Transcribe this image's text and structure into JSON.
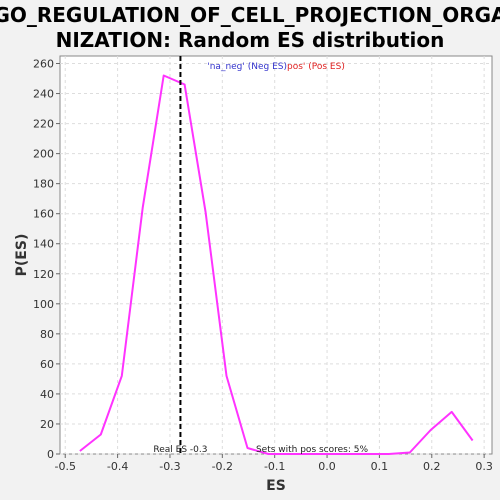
{
  "chart_data": {
    "type": "line",
    "title_lines": [
      "GO_REGULATION_OF_CELL_PROJECTION_ORGA",
      "NIZATION: Random ES distribution"
    ],
    "xlabel": "ES",
    "ylabel": "P(ES)",
    "xlim": [
      -0.51,
      0.315
    ],
    "ylim": [
      0,
      265
    ],
    "x_ticks": [
      -0.5,
      -0.4,
      -0.3,
      -0.2,
      -0.1,
      0.0,
      0.1,
      0.2,
      0.3
    ],
    "x_tick_labels": [
      "-0.5",
      "-0.4",
      "-0.3",
      "-0.2",
      "-0.1",
      "0.0",
      "0.1",
      "0.2",
      "0.3"
    ],
    "y_ticks": [
      0,
      20,
      40,
      60,
      80,
      100,
      120,
      140,
      160,
      180,
      200,
      220,
      240,
      260
    ],
    "y_tick_labels": [
      "0",
      "20",
      "40",
      "60",
      "80",
      "100",
      "120",
      "140",
      "160",
      "180",
      "200",
      "220",
      "240",
      "260"
    ],
    "grid": true,
    "series": [
      {
        "color": "#ff33ff",
        "x": [
          -0.472,
          -0.432,
          -0.392,
          -0.352,
          -0.312,
          -0.272,
          -0.232,
          -0.192,
          -0.152,
          -0.112,
          -0.072,
          -0.032,
          0.008,
          0.048,
          0.088,
          0.118,
          0.158,
          0.198,
          0.238,
          0.278
        ],
        "y": [
          2,
          13,
          52,
          164,
          252,
          246,
          161,
          52,
          4,
          0,
          0,
          0,
          0,
          0,
          0,
          0,
          1,
          16,
          28,
          9
        ]
      }
    ],
    "real_es": -0.28,
    "real_es_label": "Real ES -0.3",
    "pos_scores_label": "Sets with pos scores: 5%",
    "legend_neg": "'na_neg' (Neg ES)",
    "legend_pos": "pos' (Pos ES)",
    "legend_neg_color": "#3333cc",
    "legend_pos_color": "#e02020",
    "legend_placement": "top-center"
  }
}
